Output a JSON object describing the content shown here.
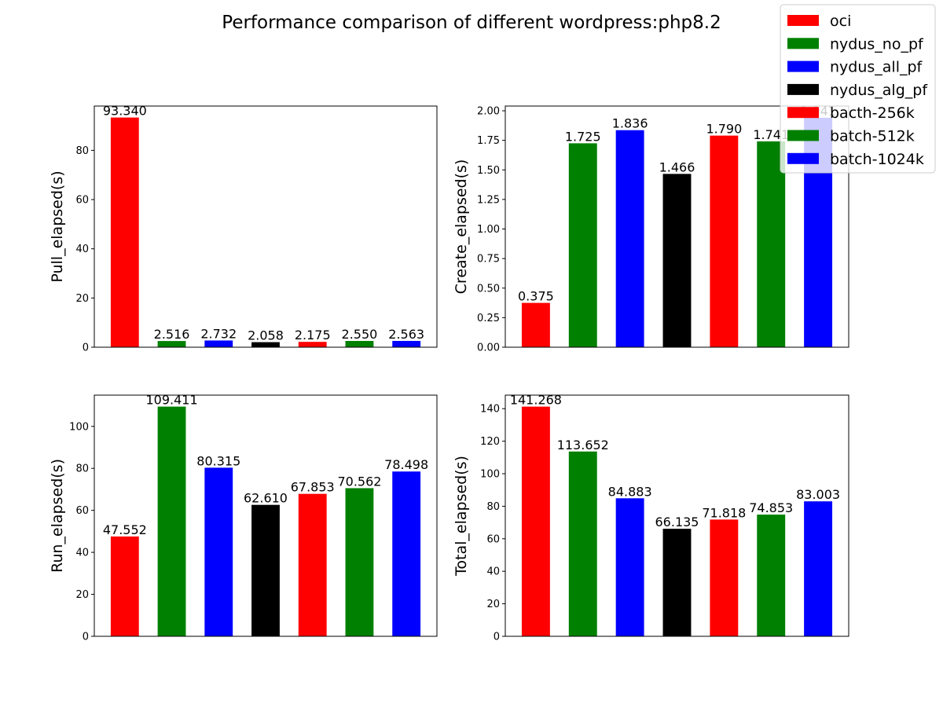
{
  "title": "Performance comparison of different wordpress:php8.2",
  "legend": {
    "position": "top-right",
    "items": [
      {
        "label": "oci",
        "color": "#ff0000"
      },
      {
        "label": "nydus_no_pf",
        "color": "#008000"
      },
      {
        "label": "nydus_all_pf",
        "color": "#0000ff"
      },
      {
        "label": "nydus_alg_pf",
        "color": "#000000"
      },
      {
        "label": "bacth-256k",
        "color": "#ff0000"
      },
      {
        "label": "batch-512k",
        "color": "#008000"
      },
      {
        "label": "batch-1024k",
        "color": "#0000ff"
      }
    ]
  },
  "chart_data": [
    {
      "type": "bar",
      "ylabel": "Pull_elapsed(s)",
      "ylim": [
        0,
        98
      ],
      "yticks": [
        0,
        20,
        40,
        60,
        80
      ],
      "tick_decimals": 0,
      "values": [
        93.34,
        2.516,
        2.732,
        2.058,
        2.175,
        2.55,
        2.563
      ],
      "labels": [
        "93.340",
        "2.516",
        "2.732",
        "2.058",
        "2.175",
        "2.550",
        "2.563"
      ],
      "colors": [
        "#ff0000",
        "#008000",
        "#0000ff",
        "#000000",
        "#ff0000",
        "#008000",
        "#0000ff"
      ]
    },
    {
      "type": "bar",
      "ylabel": "Create_elapsed(s)",
      "ylim": [
        0,
        2.04
      ],
      "yticks": [
        0,
        0.25,
        0.5,
        0.75,
        1.0,
        1.25,
        1.5,
        1.75,
        2.0
      ],
      "tick_decimals": 2,
      "values": [
        0.375,
        1.725,
        1.836,
        1.466,
        1.79,
        1.741,
        1.941
      ],
      "labels": [
        "0.375",
        "1.725",
        "1.836",
        "1.466",
        "1.790",
        "1.741",
        "1.941"
      ],
      "colors": [
        "#ff0000",
        "#008000",
        "#0000ff",
        "#000000",
        "#ff0000",
        "#008000",
        "#0000ff"
      ]
    },
    {
      "type": "bar",
      "ylabel": "Run_elapsed(s)",
      "ylim": [
        0,
        114.88
      ],
      "yticks": [
        0,
        20,
        40,
        60,
        80,
        100
      ],
      "tick_decimals": 0,
      "values": [
        47.552,
        109.411,
        80.315,
        62.61,
        67.853,
        70.562,
        78.498
      ],
      "labels": [
        "47.552",
        "109.411",
        "80.315",
        "62.610",
        "67.853",
        "70.562",
        "78.498"
      ],
      "colors": [
        "#ff0000",
        "#008000",
        "#0000ff",
        "#000000",
        "#ff0000",
        "#008000",
        "#0000ff"
      ]
    },
    {
      "type": "bar",
      "ylabel": "Total_elapsed(s)",
      "ylim": [
        0,
        148.33
      ],
      "yticks": [
        0,
        20,
        40,
        60,
        80,
        100,
        120,
        140
      ],
      "tick_decimals": 0,
      "values": [
        141.268,
        113.652,
        84.883,
        66.135,
        71.818,
        74.853,
        83.003
      ],
      "labels": [
        "141.268",
        "113.652",
        "84.883",
        "66.135",
        "71.818",
        "74.853",
        "83.003"
      ],
      "colors": [
        "#ff0000",
        "#008000",
        "#0000ff",
        "#000000",
        "#ff0000",
        "#008000",
        "#0000ff"
      ]
    }
  ]
}
